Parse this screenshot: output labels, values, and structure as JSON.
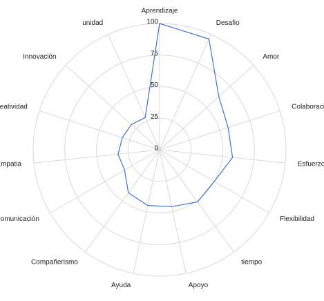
{
  "chart_data": {
    "type": "radar",
    "categories": [
      "Aprendizaje",
      "Desafio",
      "Amor",
      "Colaboracion",
      "Esfuerzo",
      "Flexibilidad",
      "tiempo",
      "Apoyo",
      "Ayuda",
      "Compañerismo",
      "comunicación",
      "Empatia",
      "Creatividad",
      "Innovación",
      "unidad"
    ],
    "values": [
      100,
      96,
      63,
      57,
      58,
      50,
      51,
      46,
      45,
      42,
      32,
      33,
      31,
      30,
      28
    ],
    "color": "#4472c4",
    "rlim": [
      0,
      100
    ],
    "rticks": [
      0,
      25,
      50,
      75,
      100
    ],
    "grid": true
  }
}
